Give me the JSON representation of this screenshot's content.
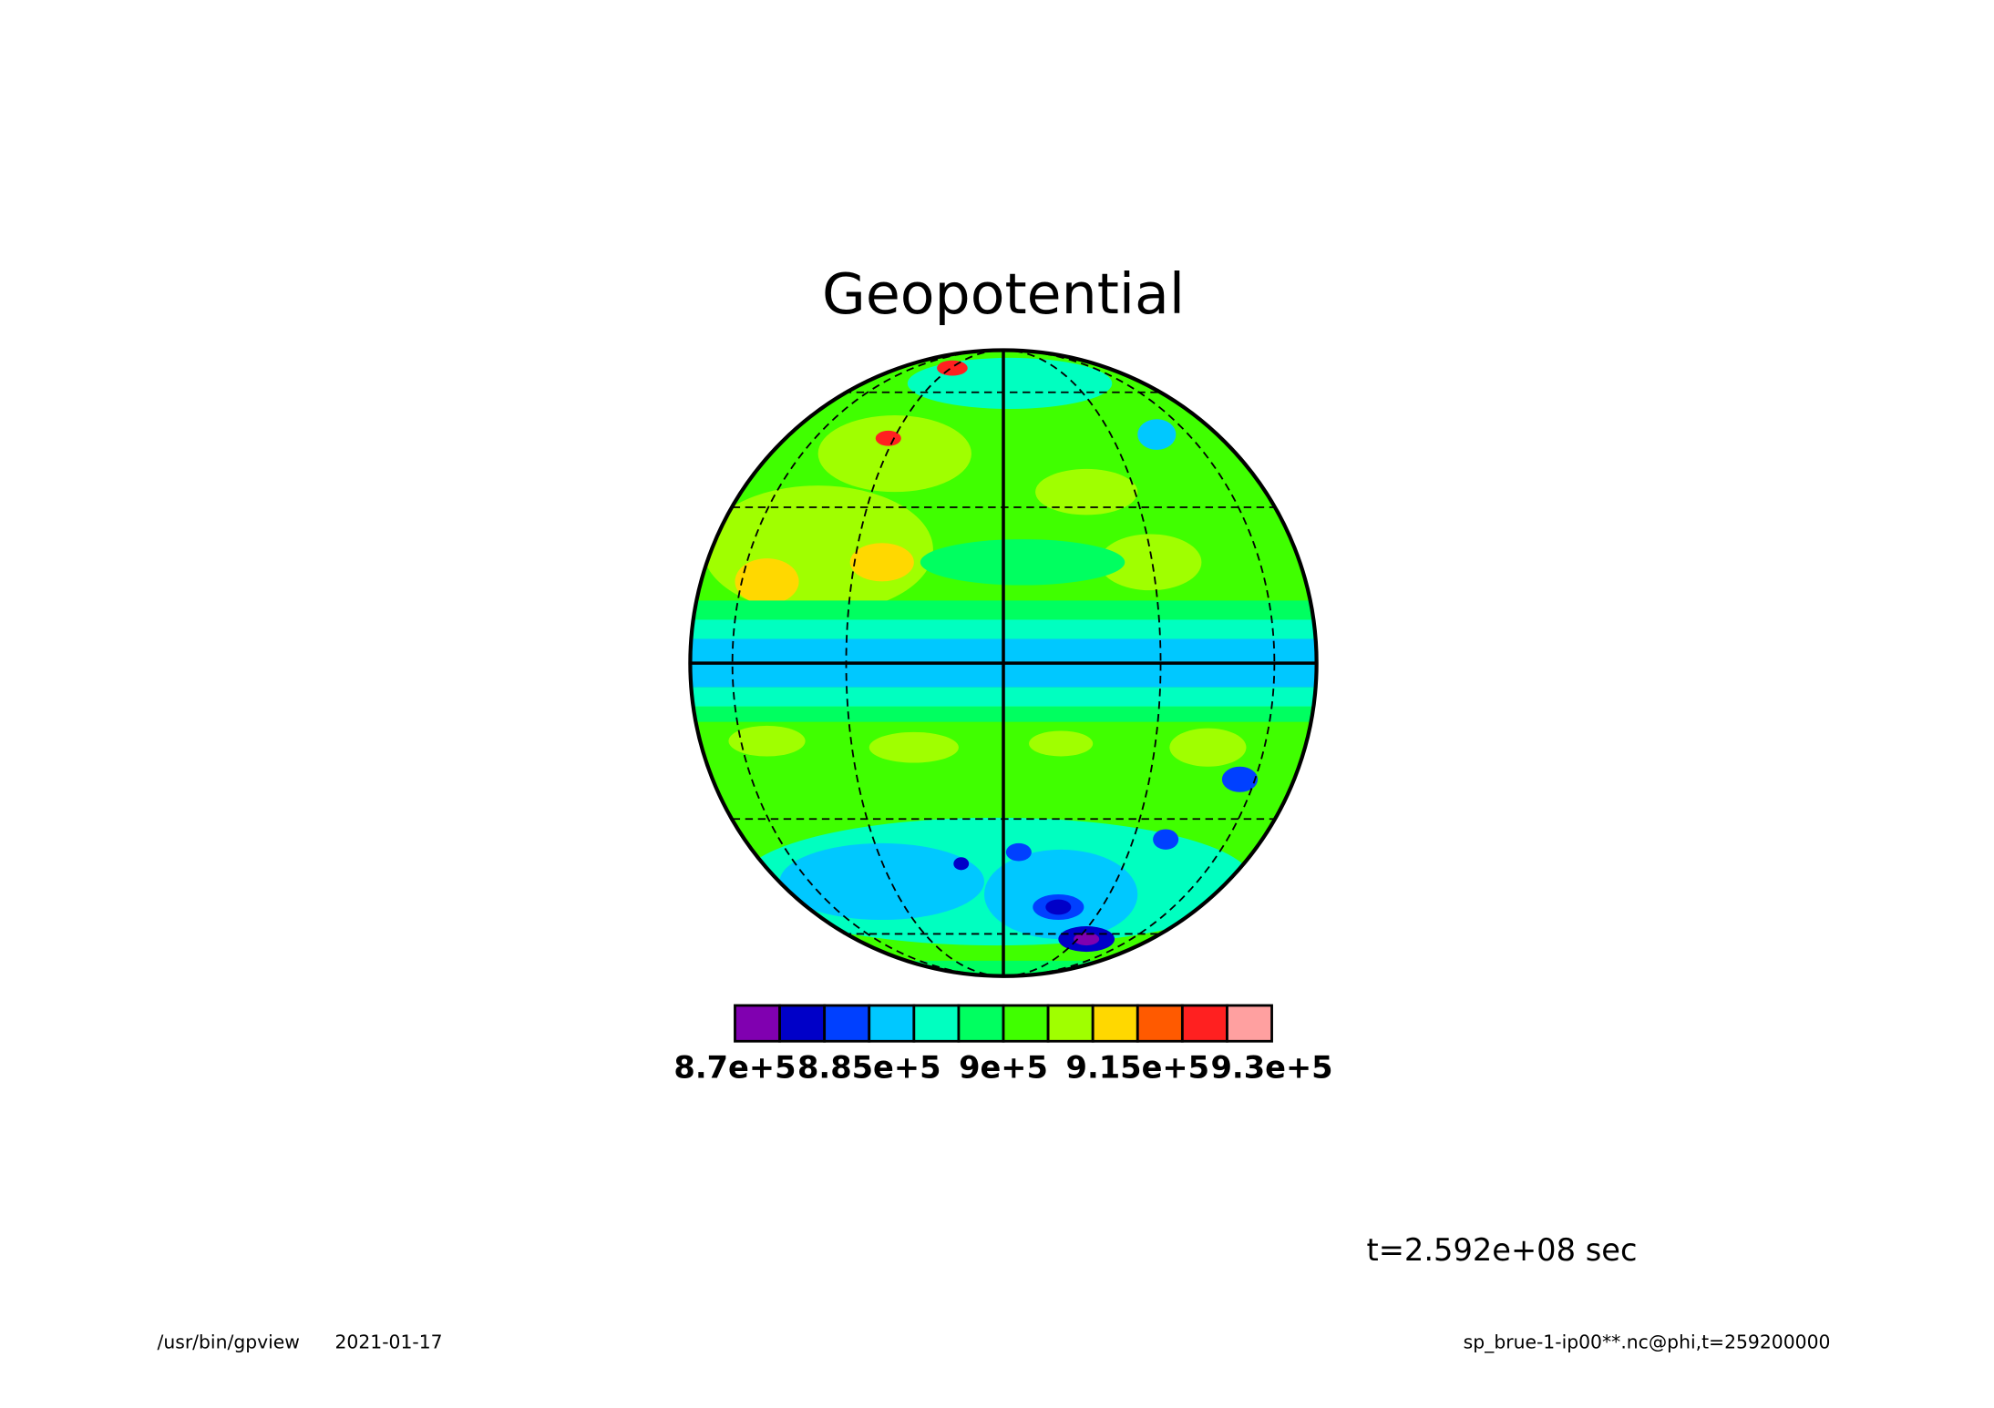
{
  "chart_data": {
    "type": "contour",
    "title": "Geopotential",
    "time_label": "t=2.592e+08 sec",
    "footer_left": [
      "/usr/bin/gpview",
      "2021-01-17"
    ],
    "footer_right": "sp_brue-1-ip00**.nc@phi,t=259200000",
    "levels": [
      870000,
      875000,
      880000,
      885000,
      890000,
      895000,
      900000,
      905000,
      910000,
      915000,
      920000,
      925000,
      930000
    ],
    "colors": [
      "#8000b0",
      "#0000c8",
      "#0040ff",
      "#00c8ff",
      "#00ffc0",
      "#00ff60",
      "#40ff00",
      "#a0ff00",
      "#ffd800",
      "#ff5a00",
      "#ff2020",
      "#ffa0a0"
    ],
    "ticks": [
      {
        "value": 870000,
        "label": "8.7e+5"
      },
      {
        "value": 885000,
        "label": "8.85e+5"
      },
      {
        "value": 900000,
        "label": "9e+5"
      },
      {
        "value": 915000,
        "label": "9.15e+5"
      },
      {
        "value": 930000,
        "label": "9.3e+5"
      }
    ]
  }
}
